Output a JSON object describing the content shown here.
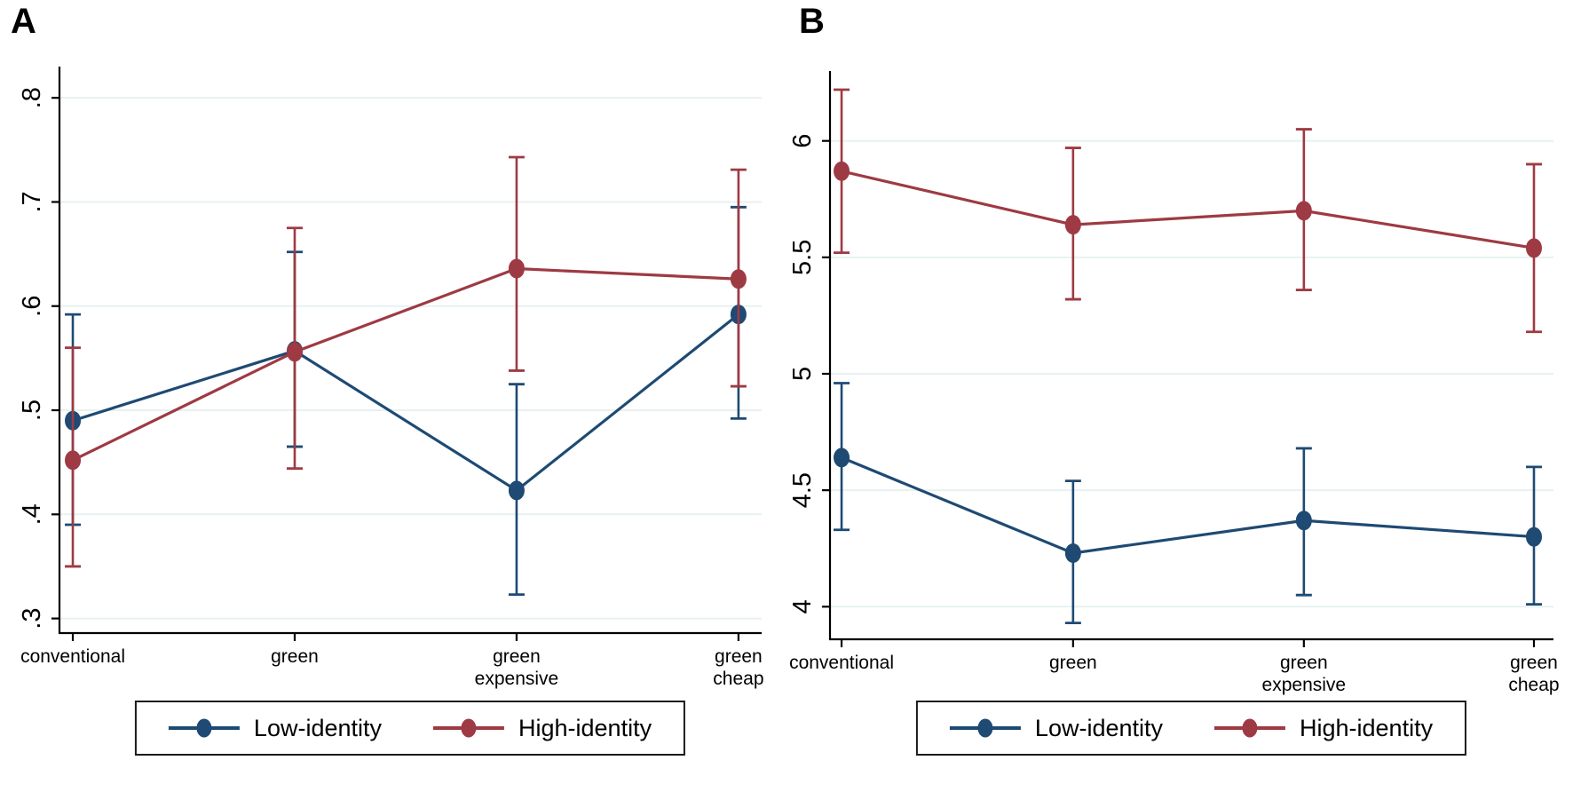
{
  "figure": {
    "panel_a_letter": "A",
    "panel_b_letter": "B",
    "legend": {
      "low_label": "Low-identity",
      "high_label": "High-identity"
    },
    "colors": {
      "low_identity": "#1e4a73",
      "high_identity": "#9e3a43",
      "gridline": "#e8f1f2",
      "axis": "#000000",
      "legend_border": "#1a1a1a"
    }
  },
  "chart_data": [
    {
      "type": "line",
      "title": "A",
      "categories": [
        "conventional",
        "green",
        "green\nexpensive",
        "green\ncheap"
      ],
      "xlabel": "",
      "ylabel": "",
      "ylim": [
        0.286,
        0.83
      ],
      "yticks": [
        0.3,
        0.4,
        0.5,
        0.6,
        0.7,
        0.8
      ],
      "ytick_labels": [
        ".3",
        ".4",
        ".5",
        ".6",
        ".7",
        ".8"
      ],
      "grid": true,
      "grid_color": "#e8f1f2",
      "legend_position": "bottom",
      "error_bars": true,
      "series": [
        {
          "name": "Low-identity",
          "color": "#1e4a73",
          "values": [
            0.49,
            0.557,
            0.423,
            0.592
          ],
          "ci_low": [
            0.39,
            0.465,
            0.323,
            0.492
          ],
          "ci_high": [
            0.592,
            0.652,
            0.525,
            0.695
          ]
        },
        {
          "name": "High-identity",
          "color": "#9e3a43",
          "values": [
            0.452,
            0.556,
            0.636,
            0.626
          ],
          "ci_low": [
            0.35,
            0.444,
            0.538,
            0.523
          ],
          "ci_high": [
            0.56,
            0.675,
            0.743,
            0.731
          ]
        }
      ]
    },
    {
      "type": "line",
      "title": "B",
      "categories": [
        "conventional",
        "green",
        "green\nexpensive",
        "green\ncheap"
      ],
      "xlabel": "",
      "ylabel": "",
      "ylim": [
        3.86,
        6.3
      ],
      "yticks": [
        4,
        4.5,
        5,
        5.5,
        6
      ],
      "ytick_labels": [
        "4",
        "4.5",
        "5",
        "5.5",
        "6"
      ],
      "grid": true,
      "grid_color": "#e8f1f2",
      "legend_position": "bottom",
      "error_bars": true,
      "series": [
        {
          "name": "Low-identity",
          "color": "#1e4a73",
          "values": [
            4.64,
            4.23,
            4.37,
            4.3
          ],
          "ci_low": [
            4.33,
            3.93,
            4.05,
            4.01
          ],
          "ci_high": [
            4.96,
            4.54,
            4.68,
            4.6
          ]
        },
        {
          "name": "High-identity",
          "color": "#9e3a43",
          "values": [
            5.87,
            5.64,
            5.7,
            5.54
          ],
          "ci_low": [
            5.52,
            5.32,
            5.36,
            5.18
          ],
          "ci_high": [
            6.22,
            5.97,
            6.05,
            5.9
          ]
        }
      ]
    }
  ]
}
